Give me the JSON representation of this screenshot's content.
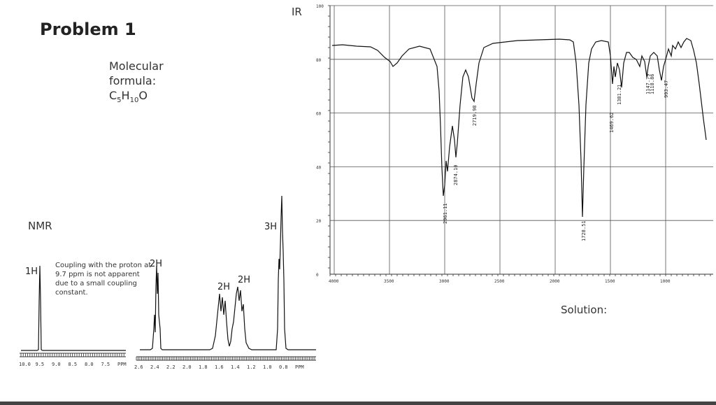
{
  "title": "Problem 1",
  "molecular_formula": {
    "label_line1": "Molecular",
    "label_line2": "formula:",
    "formula_C": "C",
    "formula_C_sub": "5",
    "formula_H": "H",
    "formula_H_sub": "10",
    "formula_O": "O"
  },
  "nmr": {
    "label": "NMR",
    "note": "Coupling with the proton at 9.7 ppm is not apparent due to a small coupling constant.",
    "peaks": [
      {
        "label": "1H",
        "ppm": 9.7
      },
      {
        "label": "2H",
        "ppm": 2.45
      },
      {
        "label": "2H",
        "ppm": 1.62
      },
      {
        "label": "2H",
        "ppm": 1.38
      },
      {
        "label": "3H",
        "ppm": 0.92
      }
    ],
    "ticks_left": [
      "10.0",
      "9.5",
      "9.0",
      "8.5",
      "8.0",
      "7.5",
      "PPM"
    ],
    "ticks_right": [
      "2.6",
      "2.4",
      "2.2",
      "2.0",
      "1.8",
      "1.6",
      "1.4",
      "1.2",
      "1.0",
      "0.8",
      "PPM"
    ]
  },
  "ir": {
    "label": "IR",
    "y_ticks": [
      "100",
      "80",
      "60",
      "40",
      "20",
      "0"
    ],
    "x_ticks": [
      "4000",
      "3500",
      "3000",
      "2500",
      "2000",
      "1500",
      "1000"
    ],
    "peak_labels": [
      "2961.11",
      "2874.10",
      "2719.98",
      "1728.51",
      "1469.62",
      "1381.21",
      "1147.79",
      "1118.86",
      "993.47"
    ]
  },
  "solution_label": "Solution:"
}
